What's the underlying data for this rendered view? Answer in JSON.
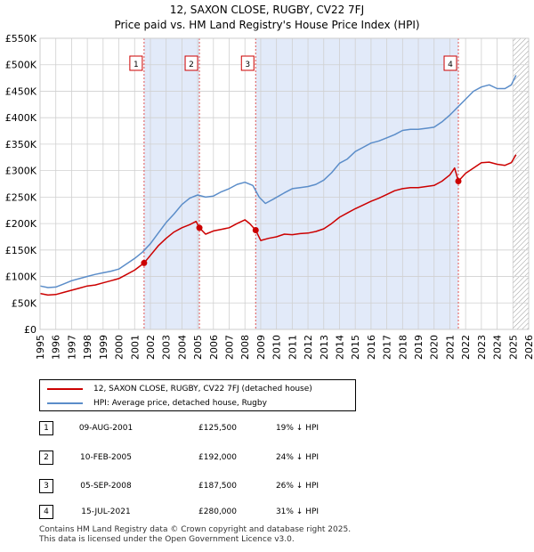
{
  "chart_data": {
    "type": "line",
    "title": "12, SAXON CLOSE, RUGBY, CV22 7FJ",
    "subtitle": "Price paid vs. HM Land Registry's House Price Index (HPI)",
    "xlim": [
      1995,
      2026
    ],
    "ylim": [
      0,
      550000
    ],
    "y_ticks": [
      {
        "value": 0,
        "label": "£0"
      },
      {
        "value": 50000,
        "label": "£50K"
      },
      {
        "value": 100000,
        "label": "£100K"
      },
      {
        "value": 150000,
        "label": "£150K"
      },
      {
        "value": 200000,
        "label": "£200K"
      },
      {
        "value": 250000,
        "label": "£250K"
      },
      {
        "value": 300000,
        "label": "£300K"
      },
      {
        "value": 350000,
        "label": "£350K"
      },
      {
        "value": 400000,
        "label": "£400K"
      },
      {
        "value": 450000,
        "label": "£450K"
      },
      {
        "value": 500000,
        "label": "£500K"
      },
      {
        "value": 550000,
        "label": "£550K"
      }
    ],
    "x_ticks": [
      "1995",
      "1996",
      "1997",
      "1998",
      "1999",
      "2000",
      "2001",
      "2002",
      "2003",
      "2004",
      "2005",
      "2006",
      "2007",
      "2008",
      "2009",
      "2010",
      "2011",
      "2012",
      "2013",
      "2014",
      "2015",
      "2016",
      "2017",
      "2018",
      "2019",
      "2020",
      "2021",
      "2022",
      "2023",
      "2024",
      "2025",
      "2026"
    ],
    "grid": true,
    "shaded_ranges": [
      [
        2001.6,
        2005.11
      ],
      [
        2008.68,
        2021.54
      ]
    ],
    "forecast_from": 2025.0,
    "series": [
      {
        "name": "12, SAXON CLOSE, RUGBY, CV22 7FJ (detached house)",
        "color": "#cc0000",
        "x": [
          1995.0,
          1995.5,
          1996.0,
          1996.5,
          1997.0,
          1997.5,
          1998.0,
          1998.5,
          1999.0,
          1999.5,
          2000.0,
          2000.5,
          2001.0,
          2001.6,
          2002.0,
          2002.5,
          2003.0,
          2003.5,
          2004.0,
          2004.5,
          2004.9,
          2005.11,
          2005.5,
          2006.0,
          2006.5,
          2007.0,
          2007.5,
          2008.0,
          2008.3,
          2008.68,
          2009.0,
          2009.5,
          2010.0,
          2010.5,
          2011.0,
          2011.5,
          2012.0,
          2012.5,
          2013.0,
          2013.5,
          2014.0,
          2014.5,
          2015.0,
          2015.5,
          2016.0,
          2016.5,
          2017.0,
          2017.5,
          2018.0,
          2018.5,
          2019.0,
          2019.5,
          2020.0,
          2020.5,
          2021.0,
          2021.3,
          2021.54,
          2022.0,
          2022.5,
          2023.0,
          2023.5,
          2024.0,
          2024.5,
          2024.9,
          2025.2
        ],
        "values": [
          68000,
          65000,
          66000,
          70000,
          74000,
          78000,
          82000,
          84000,
          88000,
          92000,
          96000,
          104000,
          112000,
          125500,
          140000,
          158000,
          172000,
          184000,
          192000,
          198000,
          204000,
          192000,
          180000,
          186000,
          189000,
          192000,
          200000,
          207000,
          200000,
          187500,
          168000,
          172000,
          175000,
          180000,
          179000,
          181000,
          182000,
          185000,
          190000,
          200000,
          212000,
          220000,
          228000,
          235000,
          242000,
          248000,
          255000,
          262000,
          266000,
          268000,
          268000,
          270000,
          272000,
          280000,
          292000,
          305000,
          280000,
          295000,
          305000,
          315000,
          316000,
          312000,
          310000,
          315000,
          330000
        ]
      },
      {
        "name": "HPI: Average price, detached house, Rugby",
        "color": "#5b8dc9",
        "x": [
          1995.0,
          1995.5,
          1996.0,
          1996.5,
          1997.0,
          1997.5,
          1998.0,
          1998.5,
          1999.0,
          1999.5,
          2000.0,
          2000.5,
          2001.0,
          2001.5,
          2002.0,
          2002.5,
          2003.0,
          2003.5,
          2004.0,
          2004.5,
          2005.0,
          2005.5,
          2006.0,
          2006.5,
          2007.0,
          2007.5,
          2008.0,
          2008.5,
          2008.9,
          2009.3,
          2009.8,
          2010.5,
          2011.0,
          2011.5,
          2012.0,
          2012.5,
          2013.0,
          2013.5,
          2014.0,
          2014.5,
          2015.0,
          2015.5,
          2016.0,
          2016.5,
          2017.0,
          2017.5,
          2018.0,
          2018.5,
          2019.0,
          2019.5,
          2020.0,
          2020.5,
          2021.0,
          2021.5,
          2022.0,
          2022.5,
          2023.0,
          2023.5,
          2024.0,
          2024.5,
          2024.9,
          2025.2
        ],
        "values": [
          82000,
          79000,
          80000,
          86000,
          92000,
          96000,
          100000,
          104000,
          107000,
          110000,
          114000,
          124000,
          134000,
          146000,
          162000,
          182000,
          202000,
          218000,
          236000,
          248000,
          254000,
          250000,
          252000,
          260000,
          266000,
          274000,
          278000,
          272000,
          250000,
          238000,
          246000,
          258000,
          266000,
          268000,
          270000,
          274000,
          282000,
          296000,
          314000,
          322000,
          336000,
          344000,
          352000,
          356000,
          362000,
          368000,
          376000,
          378000,
          378000,
          380000,
          382000,
          392000,
          405000,
          420000,
          435000,
          450000,
          458000,
          462000,
          455000,
          455000,
          462000,
          480000
        ]
      }
    ],
    "sales": [
      {
        "num": "1",
        "x": 2001.6,
        "price": 125500
      },
      {
        "num": "2",
        "x": 2005.11,
        "price": 192000
      },
      {
        "num": "3",
        "x": 2008.68,
        "price": 187500
      },
      {
        "num": "4",
        "x": 2021.54,
        "price": 280000
      }
    ]
  },
  "legend": {
    "property_label": "12, SAXON CLOSE, RUGBY, CV22 7FJ (detached house)",
    "hpi_label": "HPI: Average price, detached house, Rugby",
    "property_color": "#cc0000",
    "hpi_color": "#5b8dc9"
  },
  "transactions": [
    {
      "num": "1",
      "date": "09-AUG-2001",
      "price": "£125,500",
      "diff": "19% ↓ HPI"
    },
    {
      "num": "2",
      "date": "10-FEB-2005",
      "price": "£192,000",
      "diff": "24% ↓ HPI"
    },
    {
      "num": "3",
      "date": "05-SEP-2008",
      "price": "£187,500",
      "diff": "26% ↓ HPI"
    },
    {
      "num": "4",
      "date": "15-JUL-2021",
      "price": "£280,000",
      "diff": "31% ↓ HPI"
    }
  ],
  "footer": {
    "line1": "Contains HM Land Registry data © Crown copyright and database right 2025.",
    "line2": "This data is licensed under the Open Government Licence v3.0."
  }
}
